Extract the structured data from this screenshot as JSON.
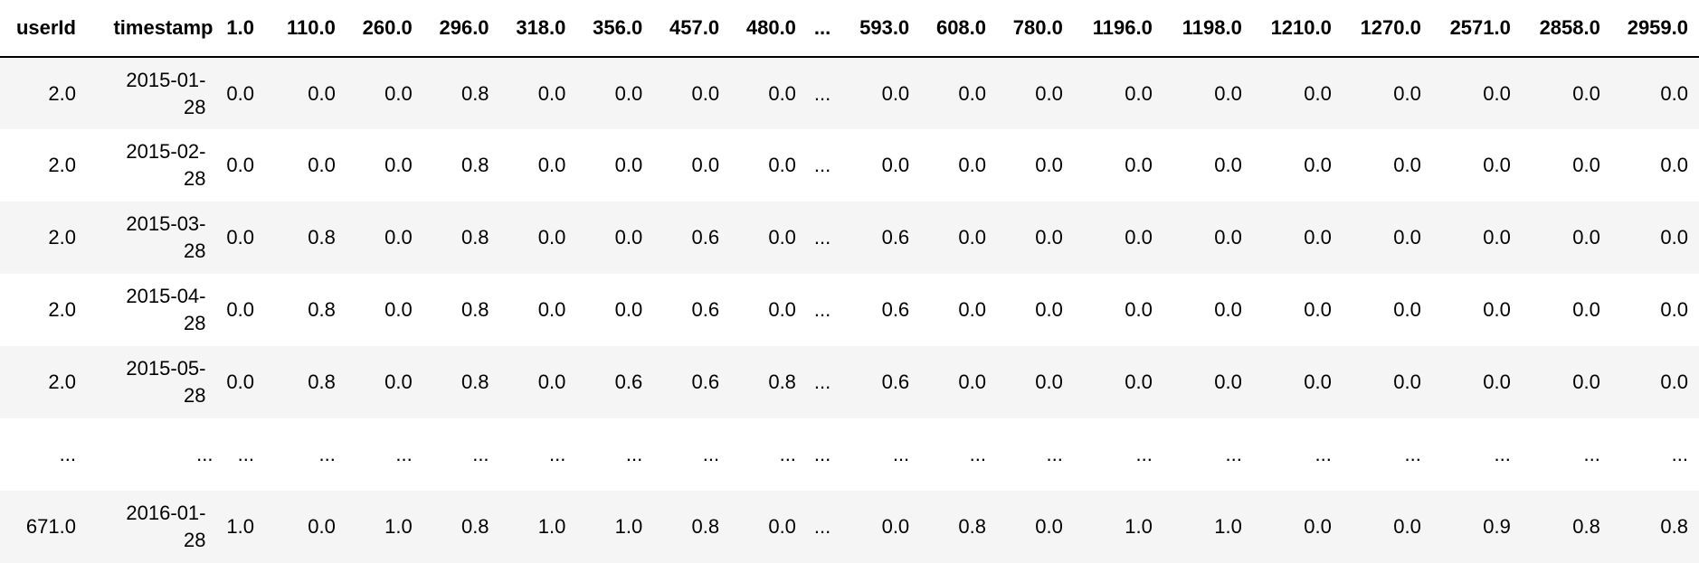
{
  "table": {
    "columns": [
      "userId",
      "timestamp",
      "1.0",
      "110.0",
      "260.0",
      "296.0",
      "318.0",
      "356.0",
      "457.0",
      "480.0",
      "...",
      "593.0",
      "608.0",
      "780.0",
      "1196.0",
      "1198.0",
      "1210.0",
      "1270.0",
      "2571.0",
      "2858.0",
      "2959.0"
    ],
    "rows": [
      [
        "2.0",
        "2015-01-28",
        "0.0",
        "0.0",
        "0.0",
        "0.8",
        "0.0",
        "0.0",
        "0.0",
        "0.0",
        "...",
        "0.0",
        "0.0",
        "0.0",
        "0.0",
        "0.0",
        "0.0",
        "0.0",
        "0.0",
        "0.0",
        "0.0"
      ],
      [
        "2.0",
        "2015-02-28",
        "0.0",
        "0.0",
        "0.0",
        "0.8",
        "0.0",
        "0.0",
        "0.0",
        "0.0",
        "...",
        "0.0",
        "0.0",
        "0.0",
        "0.0",
        "0.0",
        "0.0",
        "0.0",
        "0.0",
        "0.0",
        "0.0"
      ],
      [
        "2.0",
        "2015-03-28",
        "0.0",
        "0.8",
        "0.0",
        "0.8",
        "0.0",
        "0.0",
        "0.6",
        "0.0",
        "...",
        "0.6",
        "0.0",
        "0.0",
        "0.0",
        "0.0",
        "0.0",
        "0.0",
        "0.0",
        "0.0",
        "0.0"
      ],
      [
        "2.0",
        "2015-04-28",
        "0.0",
        "0.8",
        "0.0",
        "0.8",
        "0.0",
        "0.0",
        "0.6",
        "0.0",
        "...",
        "0.6",
        "0.0",
        "0.0",
        "0.0",
        "0.0",
        "0.0",
        "0.0",
        "0.0",
        "0.0",
        "0.0"
      ],
      [
        "2.0",
        "2015-05-28",
        "0.0",
        "0.8",
        "0.0",
        "0.8",
        "0.0",
        "0.6",
        "0.6",
        "0.8",
        "...",
        "0.6",
        "0.0",
        "0.0",
        "0.0",
        "0.0",
        "0.0",
        "0.0",
        "0.0",
        "0.0",
        "0.0"
      ],
      [
        "...",
        "...",
        "...",
        "...",
        "...",
        "...",
        "...",
        "...",
        "...",
        "...",
        "...",
        "...",
        "...",
        "...",
        "...",
        "...",
        "...",
        "...",
        "...",
        "...",
        "..."
      ],
      [
        "671.0",
        "2016-01-28",
        "1.0",
        "0.0",
        "1.0",
        "0.8",
        "1.0",
        "1.0",
        "0.8",
        "0.0",
        "...",
        "0.0",
        "0.8",
        "0.0",
        "1.0",
        "1.0",
        "0.0",
        "0.0",
        "0.9",
        "0.8",
        "0.8"
      ]
    ]
  },
  "colors": {
    "stripe": "#f5f5f5",
    "header_rule": "#000000"
  }
}
